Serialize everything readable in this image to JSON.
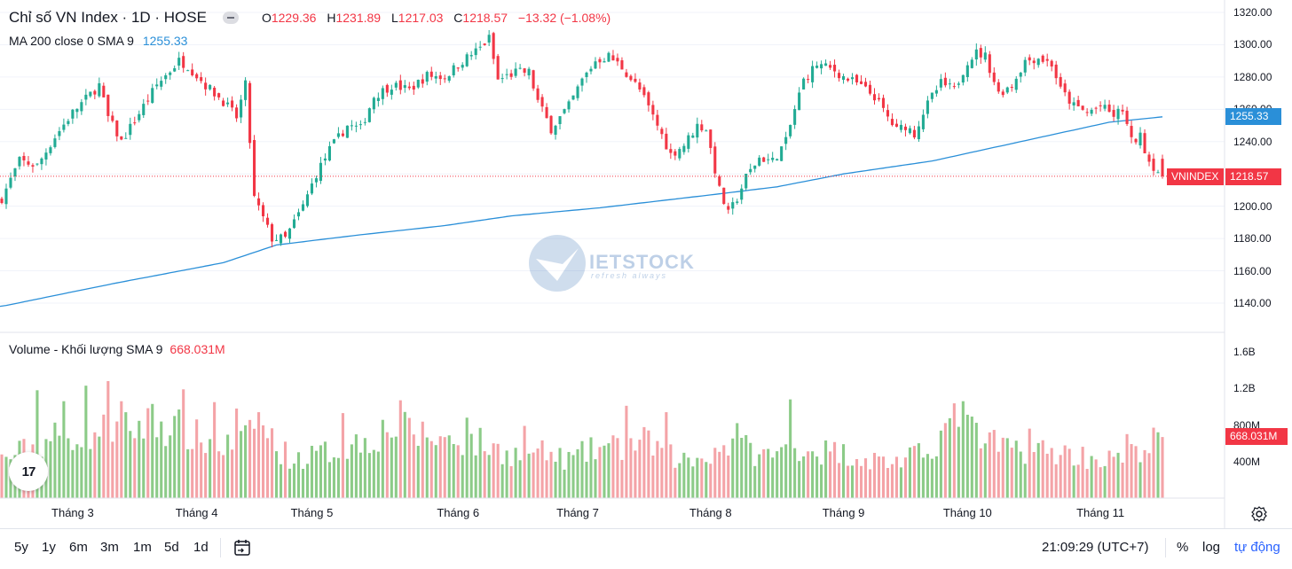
{
  "header": {
    "title": "Chỉ số VN Index · 1D · HOSE",
    "ohlc": {
      "o_label": "O",
      "o": "1229.36",
      "h_label": "H",
      "h": "1231.89",
      "l_label": "L",
      "l": "1217.03",
      "c_label": "C",
      "c": "1218.57",
      "change": "−13.32 (−1.08%)"
    },
    "ma_label": "MA 200 close 0 SMA 9",
    "ma_value": "1255.33"
  },
  "volume_legend": {
    "label": "Volume - Khối lượng SMA 9",
    "value": "668.031M"
  },
  "price_axis": {
    "ticks": [
      "1320.00",
      "1300.00",
      "1280.00",
      "1260.00",
      "1240.00",
      "1220.00",
      "1200.00",
      "1180.00",
      "1160.00",
      "1140.00"
    ]
  },
  "volume_axis": {
    "ticks": [
      "1.6B",
      "1.2B",
      "800M",
      "400M"
    ]
  },
  "time_axis": {
    "ticks": [
      "Tháng 3",
      "Tháng 4",
      "Tháng 5",
      "Tháng 6",
      "Tháng 7",
      "Tháng 8",
      "Tháng 9",
      "Tháng 10",
      "Tháng 11"
    ]
  },
  "tags": {
    "ma": "1255.33",
    "symbol": "VNINDEX",
    "price": "1218.57",
    "volume": "668.031M"
  },
  "watermark": {
    "brand": "IETSTOCK",
    "slogan": "refresh always"
  },
  "logo_text": "17",
  "bottom_bar": {
    "ranges": [
      "5y",
      "1y",
      "6m",
      "3m",
      "1m",
      "5d",
      "1d"
    ],
    "time": "21:09:29 (UTC+7)",
    "percent": "%",
    "log": "log",
    "auto": "tự động"
  },
  "colors": {
    "up": "#22ab94",
    "down": "#f23645",
    "ma": "#2a8fd8",
    "up_vol": "#8ccb88",
    "down_vol": "#f4a3a7",
    "price_line": "#f23645"
  },
  "chart_data": {
    "type": "candlestick",
    "symbol": "VNINDEX",
    "price_ylim": [
      1130,
      1325
    ],
    "volume_ylim": [
      0,
      1800
    ],
    "volume_unit": "M",
    "anchors": [
      [
        0,
        1205
      ],
      [
        4,
        1228
      ],
      [
        8,
        1225
      ],
      [
        12,
        1243
      ],
      [
        16,
        1258
      ],
      [
        22,
        1275
      ],
      [
        24,
        1255
      ],
      [
        27,
        1240
      ],
      [
        32,
        1262
      ],
      [
        35,
        1275
      ],
      [
        40,
        1290
      ],
      [
        42,
        1287
      ],
      [
        46,
        1275
      ],
      [
        50,
        1265
      ],
      [
        53,
        1255
      ],
      [
        55,
        1275
      ],
      [
        57,
        1205
      ],
      [
        61,
        1180
      ],
      [
        64,
        1180
      ],
      [
        68,
        1200
      ],
      [
        71,
        1220
      ],
      [
        74,
        1235
      ],
      [
        78,
        1250
      ],
      [
        81,
        1248
      ],
      [
        84,
        1268
      ],
      [
        88,
        1275
      ],
      [
        92,
        1272
      ],
      [
        96,
        1281
      ],
      [
        100,
        1280
      ],
      [
        104,
        1290
      ],
      [
        108,
        1298
      ],
      [
        110,
        1304
      ],
      [
        112,
        1278
      ],
      [
        116,
        1283
      ],
      [
        119,
        1283
      ],
      [
        121,
        1265
      ],
      [
        124,
        1248
      ],
      [
        126,
        1255
      ],
      [
        128,
        1262
      ],
      [
        131,
        1278
      ],
      [
        134,
        1290
      ],
      [
        137,
        1293
      ],
      [
        140,
        1286
      ],
      [
        144,
        1272
      ],
      [
        148,
        1250
      ],
      [
        151,
        1232
      ],
      [
        154,
        1238
      ],
      [
        157,
        1250
      ],
      [
        159,
        1248
      ],
      [
        162,
        1210
      ],
      [
        164,
        1195
      ],
      [
        166,
        1205
      ],
      [
        168,
        1218
      ],
      [
        171,
        1230
      ],
      [
        174,
        1228
      ],
      [
        177,
        1240
      ],
      [
        179,
        1260
      ],
      [
        181,
        1278
      ],
      [
        184,
        1288
      ],
      [
        188,
        1284
      ],
      [
        190,
        1280
      ],
      [
        193,
        1276
      ],
      [
        197,
        1268
      ],
      [
        200,
        1255
      ],
      [
        202,
        1247
      ],
      [
        204,
        1250
      ],
      [
        206,
        1245
      ],
      [
        208,
        1258
      ],
      [
        210,
        1268
      ],
      [
        212,
        1276
      ],
      [
        215,
        1272
      ],
      [
        218,
        1290
      ],
      [
        220,
        1295
      ],
      [
        222,
        1293
      ],
      [
        225,
        1270
      ],
      [
        228,
        1275
      ],
      [
        231,
        1290
      ],
      [
        234,
        1292
      ],
      [
        237,
        1288
      ],
      [
        239,
        1272
      ],
      [
        242,
        1262
      ],
      [
        245,
        1258
      ],
      [
        248,
        1262
      ],
      [
        251,
        1256
      ],
      [
        253,
        1260
      ],
      [
        255,
        1240
      ],
      [
        257,
        1243
      ],
      [
        259,
        1228
      ],
      [
        262,
        1218.57
      ]
    ],
    "volume_anchors": [
      [
        0,
        420
      ],
      [
        5,
        520
      ],
      [
        10,
        640
      ],
      [
        15,
        700
      ],
      [
        20,
        720
      ],
      [
        25,
        740
      ],
      [
        30,
        780
      ],
      [
        35,
        820
      ],
      [
        40,
        760
      ],
      [
        45,
        640
      ],
      [
        50,
        560
      ],
      [
        55,
        620
      ],
      [
        57,
        900
      ],
      [
        60,
        700
      ],
      [
        63,
        520
      ],
      [
        66,
        420
      ],
      [
        70,
        460
      ],
      [
        75,
        520
      ],
      [
        80,
        600
      ],
      [
        85,
        700
      ],
      [
        88,
        780
      ],
      [
        92,
        720
      ],
      [
        96,
        680
      ],
      [
        100,
        640
      ],
      [
        104,
        620
      ],
      [
        108,
        600
      ],
      [
        112,
        520
      ],
      [
        116,
        480
      ],
      [
        120,
        520
      ],
      [
        124,
        460
      ],
      [
        128,
        420
      ],
      [
        132,
        500
      ],
      [
        136,
        560
      ],
      [
        140,
        540
      ],
      [
        144,
        620
      ],
      [
        148,
        560
      ],
      [
        152,
        440
      ],
      [
        156,
        400
      ],
      [
        160,
        500
      ],
      [
        164,
        600
      ],
      [
        168,
        540
      ],
      [
        172,
        460
      ],
      [
        176,
        500
      ],
      [
        180,
        560
      ],
      [
        184,
        520
      ],
      [
        188,
        500
      ],
      [
        192,
        480
      ],
      [
        196,
        420
      ],
      [
        200,
        400
      ],
      [
        204,
        420
      ],
      [
        208,
        480
      ],
      [
        212,
        700
      ],
      [
        215,
        820
      ],
      [
        218,
        760
      ],
      [
        222,
        600
      ],
      [
        226,
        560
      ],
      [
        230,
        540
      ],
      [
        234,
        520
      ],
      [
        238,
        500
      ],
      [
        242,
        480
      ],
      [
        246,
        440
      ],
      [
        250,
        420
      ],
      [
        254,
        460
      ],
      [
        258,
        560
      ],
      [
        262,
        668
      ]
    ],
    "volume_spikes": [
      [
        8,
        1180
      ],
      [
        14,
        1060
      ],
      [
        19,
        1230
      ],
      [
        24,
        1280
      ],
      [
        27,
        1060
      ],
      [
        34,
        1030
      ],
      [
        41,
        1190
      ],
      [
        48,
        1050
      ],
      [
        53,
        980
      ],
      [
        58,
        940
      ],
      [
        77,
        930
      ],
      [
        90,
        1070
      ],
      [
        105,
        880
      ],
      [
        118,
        790
      ],
      [
        141,
        1010
      ],
      [
        150,
        940
      ],
      [
        166,
        820
      ],
      [
        178,
        1080
      ],
      [
        217,
        1060
      ],
      [
        232,
        760
      ],
      [
        254,
        700
      ],
      [
        261,
        720
      ]
    ],
    "ma200_anchors": [
      [
        0,
        1138
      ],
      [
        25,
        1152
      ],
      [
        50,
        1165
      ],
      [
        62,
        1176
      ],
      [
        80,
        1182
      ],
      [
        100,
        1188
      ],
      [
        115,
        1194
      ],
      [
        135,
        1199
      ],
      [
        160,
        1207
      ],
      [
        175,
        1212
      ],
      [
        190,
        1220
      ],
      [
        210,
        1228
      ],
      [
        230,
        1240
      ],
      [
        250,
        1252
      ],
      [
        262,
        1255.33
      ]
    ],
    "n_bars": 263,
    "last": {
      "open": 1229.36,
      "high": 1231.89,
      "low": 1217.03,
      "close": 1218.57,
      "change": -13.32,
      "change_pct": -1.08
    },
    "ma200_last": 1255.33,
    "volume_sma9_last": 668.031,
    "month_index": [
      16,
      44,
      70,
      103,
      130,
      160,
      190,
      218,
      248
    ]
  }
}
